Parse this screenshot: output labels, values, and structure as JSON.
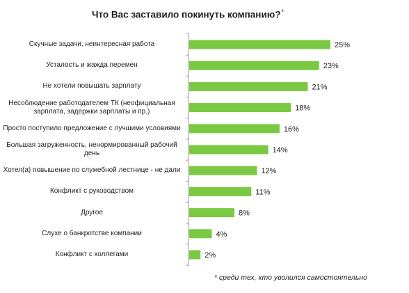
{
  "chart_data": {
    "type": "bar",
    "orientation": "horizontal",
    "title": "Что Вас заставило покинуть компанию?",
    "title_marker": "*",
    "categories": [
      "Скучные задачи, неинтересная работа",
      "Усталость и жажда перемен",
      "Не хотели повышать зарплату",
      "Несоблюдение работодателем ТК (неофициальная зарплата, задержки зарплаты и пр.)",
      "Просто поступило предложение с лучшими условиями",
      "Большая загруженность, ненормированный рабочий день",
      "Хотел(а) повышение по служебной лестнице - не дали",
      "Конфликт с руководством",
      "Другое",
      "Слухе о банкротстве компании",
      "Конфликт с коллегами"
    ],
    "values": [
      25,
      23,
      21,
      18,
      16,
      14,
      12,
      11,
      8,
      4,
      2
    ],
    "value_labels": [
      "25%",
      "23%",
      "21%",
      "18%",
      "16%",
      "14%",
      "12%",
      "11%",
      "8%",
      "4%",
      "2%"
    ],
    "unit": "%",
    "xlim": [
      0,
      25
    ],
    "grid": false,
    "legend": "none",
    "bar_color": "#7ac943",
    "axis_color": "#9a9a9a",
    "footnote": "* среди тех, кто уволился самостоятельно"
  }
}
